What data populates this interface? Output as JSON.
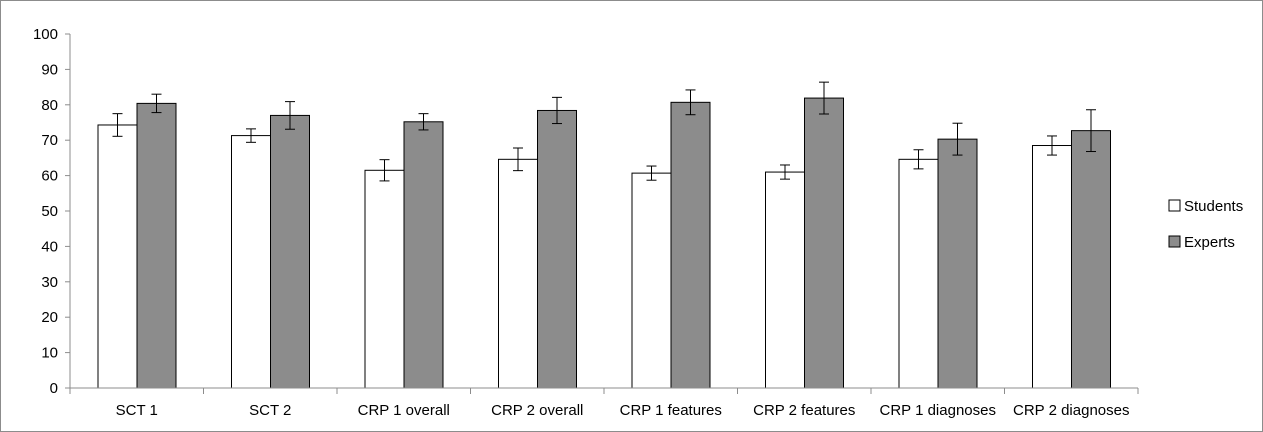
{
  "chart_data": {
    "type": "bar",
    "title": "",
    "xlabel": "",
    "ylabel": "",
    "ylim": [
      0,
      100
    ],
    "yticks": [
      0,
      10,
      20,
      30,
      40,
      50,
      60,
      70,
      80,
      90,
      100
    ],
    "grid": false,
    "legend_position": "right",
    "categories": [
      "SCT 1",
      "SCT 2",
      "CRP 1 overall",
      "CRP 2 overall",
      "CRP 1 features",
      "CRP 2 features",
      "CRP 1 diagnoses",
      "CRP 2 diagnoses"
    ],
    "series": [
      {
        "name": "Students",
        "color": "#ffffff",
        "values": [
          74.3,
          71.3,
          61.5,
          64.6,
          60.7,
          61.0,
          64.6,
          68.5
        ],
        "error": [
          3.2,
          1.9,
          3.0,
          3.2,
          2.0,
          2.0,
          2.7,
          2.7
        ]
      },
      {
        "name": "Experts",
        "color": "#8c8c8c",
        "values": [
          80.4,
          77.0,
          75.2,
          78.4,
          80.7,
          81.9,
          70.3,
          72.7
        ],
        "error": [
          2.6,
          3.9,
          2.3,
          3.7,
          3.5,
          4.5,
          4.5,
          5.9
        ]
      }
    ]
  }
}
